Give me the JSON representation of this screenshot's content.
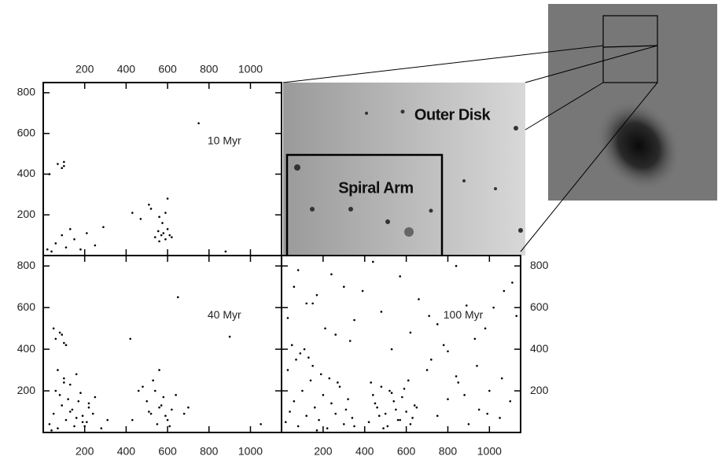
{
  "chart_data": [
    {
      "type": "scatter",
      "title": "10 Myr",
      "color": "#000000",
      "x": [
        40,
        60,
        90,
        110,
        130,
        150,
        180,
        210,
        250,
        290,
        70,
        100,
        30,
        430,
        470,
        520,
        540,
        555,
        560,
        570,
        580,
        590,
        600,
        610,
        620,
        560,
        575,
        590,
        510,
        600,
        750,
        90,
        100,
        20,
        880
      ],
      "y": [
        20,
        60,
        100,
        40,
        130,
        80,
        30,
        110,
        50,
        140,
        450,
        460,
        400,
        210,
        180,
        230,
        90,
        120,
        70,
        100,
        110,
        80,
        130,
        100,
        90,
        190,
        160,
        210,
        250,
        280,
        650,
        430,
        440,
        30,
        20
      ],
      "xlim": [
        0,
        1150
      ],
      "ylim": [
        0,
        850
      ],
      "xticks": [
        200,
        400,
        600,
        800,
        1000
      ],
      "yticks": [
        200,
        400,
        600,
        800
      ]
    },
    {
      "type": "scatter",
      "title": "40 Myr",
      "color": "#000000",
      "x": [
        30,
        50,
        70,
        90,
        110,
        130,
        150,
        170,
        190,
        210,
        60,
        80,
        100,
        120,
        140,
        160,
        180,
        200,
        220,
        240,
        40,
        70,
        100,
        130,
        160,
        190,
        220,
        250,
        280,
        310,
        500,
        520,
        540,
        560,
        580,
        600,
        620,
        550,
        570,
        590,
        430,
        460,
        480,
        510,
        530,
        610,
        640,
        680,
        700,
        560,
        60,
        80,
        100,
        50,
        90,
        110,
        650,
        420,
        900,
        1050
      ],
      "y": [
        40,
        90,
        20,
        130,
        60,
        100,
        30,
        150,
        80,
        50,
        200,
        180,
        240,
        160,
        110,
        70,
        190,
        30,
        120,
        90,
        10,
        300,
        260,
        230,
        280,
        50,
        140,
        170,
        20,
        60,
        150,
        90,
        200,
        120,
        170,
        60,
        110,
        40,
        130,
        80,
        60,
        200,
        220,
        100,
        250,
        30,
        180,
        90,
        120,
        300,
        450,
        480,
        430,
        500,
        470,
        420,
        650,
        450,
        460,
        40
      ],
      "xlim": [
        0,
        1150
      ],
      "ylim": [
        0,
        850
      ],
      "xticks": [
        200,
        400,
        600,
        800,
        1000
      ],
      "yticks": [
        200,
        400,
        600,
        800
      ]
    },
    {
      "type": "scatter",
      "title": "100 Myr",
      "color": "#000000",
      "x": [
        20,
        40,
        60,
        80,
        100,
        120,
        140,
        160,
        180,
        200,
        220,
        240,
        260,
        280,
        300,
        320,
        340,
        30,
        70,
        110,
        150,
        190,
        230,
        270,
        310,
        350,
        50,
        90,
        130,
        170,
        420,
        440,
        460,
        480,
        500,
        520,
        540,
        560,
        580,
        600,
        620,
        640,
        430,
        470,
        510,
        550,
        590,
        630,
        450,
        490,
        530,
        570,
        610,
        650,
        700,
        750,
        800,
        850,
        900,
        950,
        1000,
        1050,
        1100,
        720,
        780,
        840,
        880,
        940,
        990,
        1060,
        30,
        120,
        210,
        300,
        390,
        480,
        570,
        660,
        750,
        840,
        930,
        1020,
        1110,
        80,
        170,
        260,
        350,
        440,
        530,
        620,
        710,
        800,
        890,
        980,
        1070,
        60,
        150,
        240,
        330,
        1130
      ],
      "y": [
        50,
        100,
        150,
        30,
        200,
        80,
        250,
        120,
        60,
        180,
        20,
        140,
        90,
        220,
        40,
        160,
        70,
        300,
        350,
        400,
        320,
        280,
        260,
        240,
        110,
        30,
        420,
        380,
        360,
        10,
        50,
        180,
        120,
        220,
        90,
        200,
        150,
        60,
        170,
        100,
        40,
        130,
        240,
        80,
        30,
        110,
        210,
        70,
        140,
        20,
        190,
        60,
        250,
        120,
        300,
        80,
        160,
        240,
        40,
        110,
        200,
        70,
        150,
        350,
        420,
        270,
        180,
        320,
        90,
        260,
        550,
        620,
        500,
        700,
        680,
        580,
        750,
        640,
        520,
        800,
        450,
        600,
        720,
        780,
        660,
        470,
        540,
        820,
        400,
        480,
        560,
        390,
        610,
        500,
        680,
        700,
        620,
        760,
        440,
        560
      ],
      "xlim": [
        0,
        1150
      ],
      "ylim": [
        0,
        850
      ],
      "xticks": [
        200,
        400,
        600,
        800,
        1000
      ],
      "yticks": [
        200,
        400,
        600,
        800
      ]
    }
  ],
  "image_labels": {
    "outer_disk": "Outer Disk",
    "spiral_arm": "Spiral Arm"
  }
}
